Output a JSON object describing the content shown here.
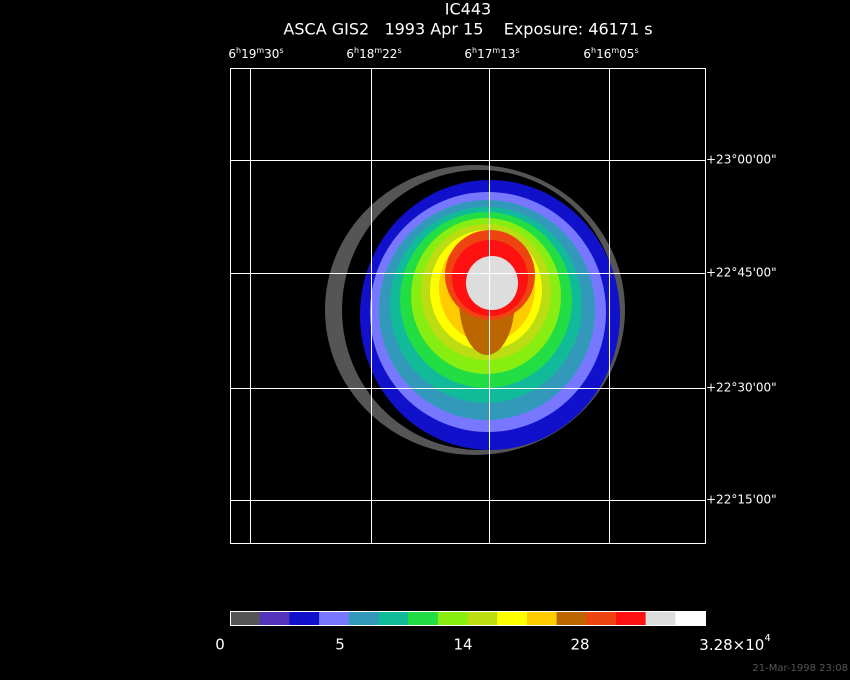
{
  "header": {
    "title": "IC443",
    "subtitle": "ASCA GIS2   1993 Apr 15    Exposure: 46171 s"
  },
  "ra_labels": [
    [
      "6",
      "h",
      "19",
      "m",
      "30",
      "s"
    ],
    [
      "6",
      "h",
      "18",
      "m",
      "22",
      "s"
    ],
    [
      "6",
      "h",
      "17",
      "m",
      "13",
      "s"
    ],
    [
      "6",
      "h",
      "16",
      "m",
      "05",
      "s"
    ]
  ],
  "dec_labels": [
    "+23°00'00\"",
    "+22°45'00\"",
    "+22°30'00\"",
    "+22°15'00\""
  ],
  "colorbar": {
    "colors": [
      "#555555",
      "#5533bb",
      "#1111cc",
      "#7777ff",
      "#3399bb",
      "#11bb99",
      "#22dd44",
      "#88ee11",
      "#bbdd11",
      "#ffff00",
      "#ffcc00",
      "#bb6600",
      "#ee4411",
      "#ff1111",
      "#dddddd",
      "#ffffff"
    ],
    "labels": [
      "0",
      "5",
      "14",
      "28",
      [
        "3.28×10",
        "4"
      ]
    ]
  },
  "footer": "21-Mar-1998 23:08"
}
